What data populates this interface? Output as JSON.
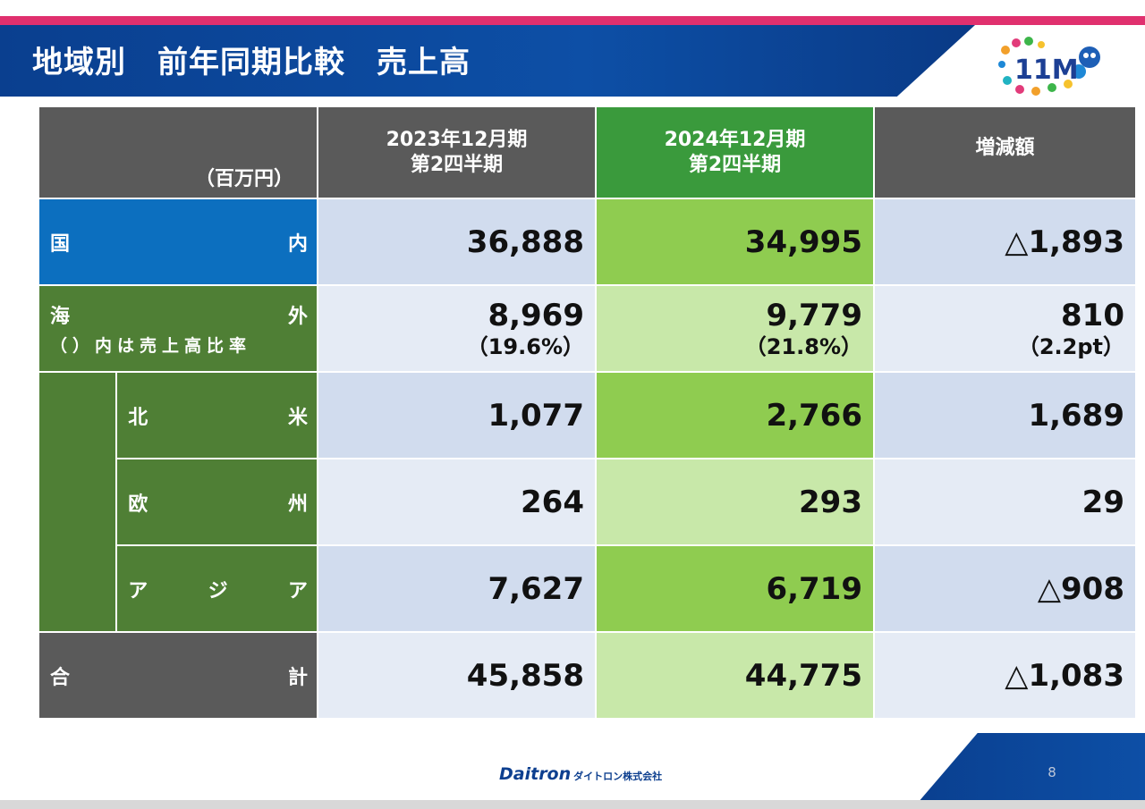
{
  "header": {
    "title": "地域別　前年同期比較　売上高"
  },
  "logo": {
    "text": "11M"
  },
  "table": {
    "unit": "（百万円）",
    "columns": [
      {
        "line1": "2023年12月期",
        "line2": "第2四半期"
      },
      {
        "line1": "2024年12月期",
        "line2": "第2四半期"
      },
      {
        "line1": "増減額"
      }
    ],
    "rows": {
      "domestic": {
        "label_left": "国",
        "label_right": "内",
        "v2023": "36,888",
        "v2024": "34,995",
        "diff": "△1,893"
      },
      "overseas": {
        "label_left": "海",
        "label_right": "外",
        "note": "（）内は売上高比率",
        "v2023": "8,969",
        "v2023_ratio": "（19.6%）",
        "v2024": "9,779",
        "v2024_ratio": "（21.8%）",
        "diff": "810",
        "diff_ratio": "（2.2pt）"
      },
      "north_america": {
        "label_left": "北",
        "label_right": "米",
        "v2023": "1,077",
        "v2024": "2,766",
        "diff": "1,689"
      },
      "europe": {
        "label_left": "欧",
        "label_right": "州",
        "v2023": "264",
        "v2024": "293",
        "diff": "29"
      },
      "asia": {
        "label_left": "ア",
        "label_mid": "ジ",
        "label_right": "ア",
        "v2023": "7,627",
        "v2024": "6,719",
        "diff": "△908"
      },
      "total": {
        "label_left": "合",
        "label_right": "計",
        "v2023": "45,858",
        "v2024": "44,775",
        "diff": "△1,083"
      }
    }
  },
  "footer": {
    "brand": "Daitron",
    "brand_sub": "ダイトロン株式会社",
    "page": "8"
  },
  "colors": {
    "header_blue": "#0d4fa6",
    "accent_pink": "#e0306e",
    "label_blue": "#0c6fbf",
    "label_green": "#4f7f35",
    "label_gray": "#5a5a5a",
    "header_green": "#3a9a3c",
    "cell_blue": "#d1dcee",
    "cell_blue_light": "#e5ebf5",
    "cell_green": "#8fcc50",
    "cell_green_light": "#c8e8a9"
  }
}
